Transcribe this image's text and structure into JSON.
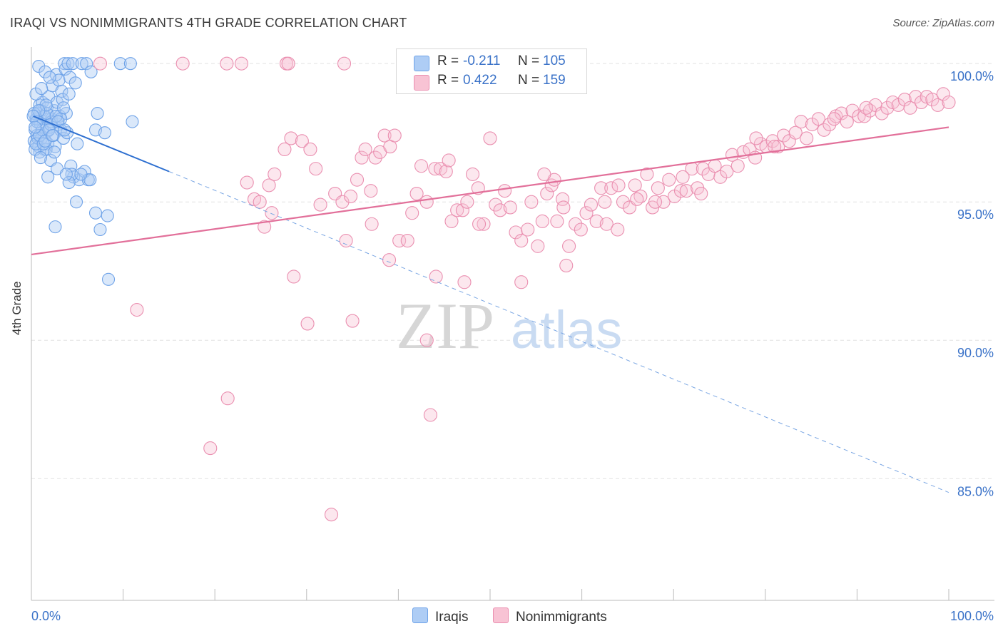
{
  "header": {
    "title": "IRAQI VS NONIMMIGRANTS 4TH GRADE CORRELATION CHART",
    "source": "Source: ZipAtlas.com"
  },
  "watermark": {
    "zip": "ZIP",
    "atlas": "atlas"
  },
  "legend": {
    "r_label": "R =",
    "n_label": "N =",
    "series": [
      {
        "name": "Iraqis",
        "r": "-0.211",
        "n": "105",
        "color": "#6fa3e8",
        "fill": "#aecdf5"
      },
      {
        "name": "Nonimmigrants",
        "r": "0.422",
        "n": "159",
        "color": "#ea8fb0",
        "fill": "#f8c3d4"
      }
    ]
  },
  "chart_data": {
    "type": "scatter",
    "title": "IRAQI VS NONIMMIGRANTS 4TH GRADE CORRELATION CHART",
    "xlabel": "",
    "ylabel": "4th Grade",
    "xlim": [
      0,
      100
    ],
    "ylim": [
      80.6,
      100.7
    ],
    "x_tick_labels": [
      "0.0%",
      "100.0%"
    ],
    "y_ticks": [
      {
        "value": 100,
        "label": "100.0%"
      },
      {
        "value": 95,
        "label": "95.0%"
      },
      {
        "value": 90,
        "label": "90.0%"
      },
      {
        "value": 85,
        "label": "85.0%"
      }
    ],
    "grid": true,
    "legend_position": "top-center",
    "series": [
      {
        "name": "Iraqis",
        "color": "#6fa3e8",
        "r": -0.211,
        "n": 105,
        "trend": {
          "x0": 0.2,
          "y0": 98.1,
          "x1": 15.0,
          "y1": 96.1,
          "dash_to_x": 100,
          "dash_to_y": 84.5
        },
        "points": [
          [
            0.3,
            97.2
          ],
          [
            0.4,
            97.6
          ],
          [
            0.5,
            98.0
          ],
          [
            0.6,
            97.4
          ],
          [
            0.7,
            98.2
          ],
          [
            0.8,
            97.0
          ],
          [
            0.9,
            98.5
          ],
          [
            1.0,
            97.8
          ],
          [
            1.1,
            97.3
          ],
          [
            1.2,
            98.6
          ],
          [
            1.3,
            97.9
          ],
          [
            1.4,
            96.9
          ],
          [
            1.5,
            98.1
          ],
          [
            1.6,
            97.5
          ],
          [
            1.7,
            98.4
          ],
          [
            1.8,
            97.1
          ],
          [
            1.9,
            98.8
          ],
          [
            2.0,
            97.7
          ],
          [
            2.1,
            96.5
          ],
          [
            2.2,
            98.0
          ],
          [
            2.3,
            99.2
          ],
          [
            2.4,
            97.4
          ],
          [
            2.5,
            98.3
          ],
          [
            2.6,
            97.0
          ],
          [
            2.7,
            99.6
          ],
          [
            2.8,
            98.6
          ],
          [
            2.9,
            97.8
          ],
          [
            3.0,
            99.4
          ],
          [
            3.1,
            98.1
          ],
          [
            3.2,
            97.6
          ],
          [
            3.3,
            99.0
          ],
          [
            3.4,
            98.7
          ],
          [
            3.5,
            97.3
          ],
          [
            3.6,
            100.0
          ],
          [
            3.7,
            99.8
          ],
          [
            3.8,
            98.2
          ],
          [
            3.9,
            97.5
          ],
          [
            4.0,
            100.0
          ],
          [
            4.1,
            98.9
          ],
          [
            4.2,
            99.5
          ],
          [
            4.3,
            96.3
          ],
          [
            4.5,
            100.0
          ],
          [
            4.6,
            95.9
          ],
          [
            4.8,
            99.3
          ],
          [
            5.0,
            97.1
          ],
          [
            5.2,
            95.8
          ],
          [
            5.5,
            100.0
          ],
          [
            5.8,
            96.1
          ],
          [
            6.0,
            100.0
          ],
          [
            6.2,
            95.8
          ],
          [
            6.5,
            99.7
          ],
          [
            7.0,
            97.6
          ],
          [
            7.2,
            98.2
          ],
          [
            0.5,
            98.9
          ],
          [
            0.8,
            99.9
          ],
          [
            1.5,
            99.7
          ],
          [
            0.9,
            96.8
          ],
          [
            1.8,
            95.9
          ],
          [
            2.6,
            94.1
          ],
          [
            4.9,
            95.0
          ],
          [
            6.4,
            95.8
          ],
          [
            7.0,
            94.6
          ],
          [
            7.5,
            94.0
          ],
          [
            8.3,
            94.5
          ],
          [
            8.4,
            92.2
          ],
          [
            8.0,
            97.5
          ],
          [
            9.7,
            100.0
          ],
          [
            10.8,
            100.0
          ],
          [
            11.0,
            97.9
          ],
          [
            1.6,
            96.9
          ],
          [
            1.0,
            98.3
          ],
          [
            2.0,
            99.5
          ],
          [
            0.6,
            98.0
          ],
          [
            0.7,
            97.3
          ],
          [
            1.2,
            97.6
          ],
          [
            1.4,
            98.1
          ],
          [
            2.2,
            97.9
          ],
          [
            2.5,
            96.8
          ],
          [
            0.4,
            96.9
          ],
          [
            0.5,
            97.1
          ],
          [
            1.1,
            99.1
          ],
          [
            1.7,
            98.2
          ],
          [
            2.8,
            96.2
          ],
          [
            3.2,
            98.0
          ],
          [
            0.3,
            98.2
          ],
          [
            0.9,
            97.4
          ],
          [
            1.3,
            97.1
          ],
          [
            2.1,
            97.8
          ],
          [
            1.6,
            98.5
          ],
          [
            0.8,
            98.3
          ],
          [
            1.9,
            97.6
          ],
          [
            2.7,
            98.1
          ],
          [
            3.5,
            98.4
          ],
          [
            4.4,
            96.0
          ],
          [
            0.6,
            97.9
          ],
          [
            1.0,
            96.6
          ],
          [
            1.5,
            97.2
          ],
          [
            2.3,
            97.4
          ],
          [
            2.9,
            97.9
          ],
          [
            3.6,
            97.6
          ],
          [
            0.2,
            98.1
          ],
          [
            4.1,
            95.7
          ],
          [
            5.4,
            96.0
          ],
          [
            3.8,
            96.0
          ],
          [
            0.4,
            97.7
          ]
        ]
      },
      {
        "name": "Nonimmigrants",
        "color": "#ea8fb0",
        "r": 0.422,
        "n": 159,
        "trend": {
          "x0": 0,
          "y0": 93.1,
          "x1": 100,
          "y1": 97.7
        },
        "points": [
          [
            7.5,
            100.0
          ],
          [
            16.5,
            100.0
          ],
          [
            21.3,
            100.0
          ],
          [
            22.9,
            100.0
          ],
          [
            27.8,
            100.0
          ],
          [
            28.0,
            100.0
          ],
          [
            34.1,
            100.0
          ],
          [
            11.5,
            91.1
          ],
          [
            21.4,
            87.9
          ],
          [
            19.5,
            86.1
          ],
          [
            32.7,
            83.7
          ],
          [
            28.6,
            92.3
          ],
          [
            30.1,
            90.6
          ],
          [
            35.0,
            90.7
          ],
          [
            43.5,
            87.3
          ],
          [
            43.1,
            90.0
          ],
          [
            44.1,
            92.3
          ],
          [
            47.2,
            92.1
          ],
          [
            53.4,
            92.1
          ],
          [
            58.3,
            92.7
          ],
          [
            39.0,
            92.9
          ],
          [
            23.5,
            95.7
          ],
          [
            24.3,
            95.1
          ],
          [
            24.9,
            95.0
          ],
          [
            25.9,
            95.6
          ],
          [
            25.4,
            94.1
          ],
          [
            26.2,
            94.6
          ],
          [
            26.5,
            96.0
          ],
          [
            27.6,
            96.9
          ],
          [
            28.3,
            97.3
          ],
          [
            29.5,
            97.2
          ],
          [
            30.4,
            96.9
          ],
          [
            31.0,
            96.2
          ],
          [
            33.1,
            95.3
          ],
          [
            33.9,
            95.0
          ],
          [
            34.3,
            93.6
          ],
          [
            35.5,
            95.8
          ],
          [
            36.0,
            96.6
          ],
          [
            36.4,
            96.9
          ],
          [
            37.1,
            94.2
          ],
          [
            37.5,
            96.6
          ],
          [
            38.0,
            96.8
          ],
          [
            38.5,
            97.4
          ],
          [
            39.1,
            97.0
          ],
          [
            39.6,
            97.4
          ],
          [
            40.1,
            93.6
          ],
          [
            41.0,
            93.6
          ],
          [
            41.5,
            94.6
          ],
          [
            42.0,
            95.3
          ],
          [
            42.5,
            96.3
          ],
          [
            43.1,
            95.0
          ],
          [
            44.0,
            96.2
          ],
          [
            44.6,
            96.2
          ],
          [
            45.2,
            96.1
          ],
          [
            45.8,
            94.3
          ],
          [
            46.4,
            94.7
          ],
          [
            47.0,
            94.7
          ],
          [
            47.5,
            95.0
          ],
          [
            48.1,
            96.0
          ],
          [
            48.7,
            95.5
          ],
          [
            49.3,
            94.2
          ],
          [
            50.0,
            97.3
          ],
          [
            50.6,
            94.9
          ],
          [
            51.1,
            94.7
          ],
          [
            51.6,
            95.4
          ],
          [
            52.2,
            94.8
          ],
          [
            52.8,
            93.9
          ],
          [
            53.4,
            93.6
          ],
          [
            54.1,
            94.0
          ],
          [
            54.5,
            95.0
          ],
          [
            55.2,
            93.4
          ],
          [
            55.7,
            94.3
          ],
          [
            56.2,
            95.3
          ],
          [
            56.7,
            95.6
          ],
          [
            57.3,
            94.3
          ],
          [
            57.9,
            95.1
          ],
          [
            58.6,
            93.4
          ],
          [
            59.3,
            94.2
          ],
          [
            59.9,
            94.0
          ],
          [
            60.5,
            94.6
          ],
          [
            61.0,
            94.9
          ],
          [
            61.6,
            94.3
          ],
          [
            62.1,
            95.5
          ],
          [
            62.7,
            94.2
          ],
          [
            63.2,
            95.5
          ],
          [
            63.9,
            94.0
          ],
          [
            64.5,
            95.0
          ],
          [
            65.2,
            94.8
          ],
          [
            65.8,
            95.6
          ],
          [
            66.4,
            95.2
          ],
          [
            67.1,
            96.0
          ],
          [
            67.7,
            94.8
          ],
          [
            68.3,
            95.5
          ],
          [
            68.9,
            95.0
          ],
          [
            69.5,
            95.8
          ],
          [
            70.1,
            95.2
          ],
          [
            70.8,
            95.4
          ],
          [
            71.4,
            95.4
          ],
          [
            72.0,
            96.2
          ],
          [
            72.6,
            95.5
          ],
          [
            73.2,
            96.2
          ],
          [
            73.8,
            96.0
          ],
          [
            74.5,
            96.3
          ],
          [
            75.1,
            95.9
          ],
          [
            75.8,
            96.1
          ],
          [
            76.4,
            96.7
          ],
          [
            77.0,
            96.3
          ],
          [
            77.6,
            96.8
          ],
          [
            78.3,
            96.9
          ],
          [
            78.9,
            96.6
          ],
          [
            79.5,
            97.1
          ],
          [
            80.1,
            97.0
          ],
          [
            80.8,
            97.2
          ],
          [
            81.4,
            97.0
          ],
          [
            82.0,
            97.4
          ],
          [
            82.6,
            97.2
          ],
          [
            83.3,
            97.5
          ],
          [
            83.9,
            97.9
          ],
          [
            84.5,
            97.3
          ],
          [
            85.1,
            97.8
          ],
          [
            85.8,
            98.0
          ],
          [
            86.4,
            97.6
          ],
          [
            87.0,
            97.8
          ],
          [
            87.7,
            98.1
          ],
          [
            88.3,
            98.2
          ],
          [
            88.9,
            97.9
          ],
          [
            89.5,
            98.3
          ],
          [
            90.2,
            98.1
          ],
          [
            90.8,
            98.1
          ],
          [
            91.4,
            98.3
          ],
          [
            92.0,
            98.5
          ],
          [
            92.7,
            98.2
          ],
          [
            93.3,
            98.4
          ],
          [
            93.9,
            98.6
          ],
          [
            94.5,
            98.5
          ],
          [
            95.2,
            98.7
          ],
          [
            95.8,
            98.4
          ],
          [
            96.4,
            98.8
          ],
          [
            97.0,
            98.6
          ],
          [
            97.6,
            98.8
          ],
          [
            98.2,
            98.7
          ],
          [
            98.8,
            98.5
          ],
          [
            99.4,
            98.9
          ],
          [
            100.0,
            98.6
          ],
          [
            71.0,
            95.9
          ],
          [
            73.0,
            95.3
          ],
          [
            79.0,
            97.3
          ],
          [
            66.0,
            95.1
          ],
          [
            62.5,
            95.0
          ],
          [
            58.0,
            94.8
          ],
          [
            57.0,
            95.8
          ],
          [
            45.5,
            96.5
          ],
          [
            37.0,
            95.4
          ],
          [
            31.5,
            94.9
          ],
          [
            34.8,
            95.2
          ],
          [
            48.8,
            94.2
          ],
          [
            55.9,
            96.0
          ],
          [
            64.0,
            95.6
          ],
          [
            68.0,
            95.0
          ],
          [
            81.0,
            97.0
          ],
          [
            87.5,
            98.0
          ],
          [
            91.0,
            98.4
          ]
        ]
      }
    ]
  }
}
